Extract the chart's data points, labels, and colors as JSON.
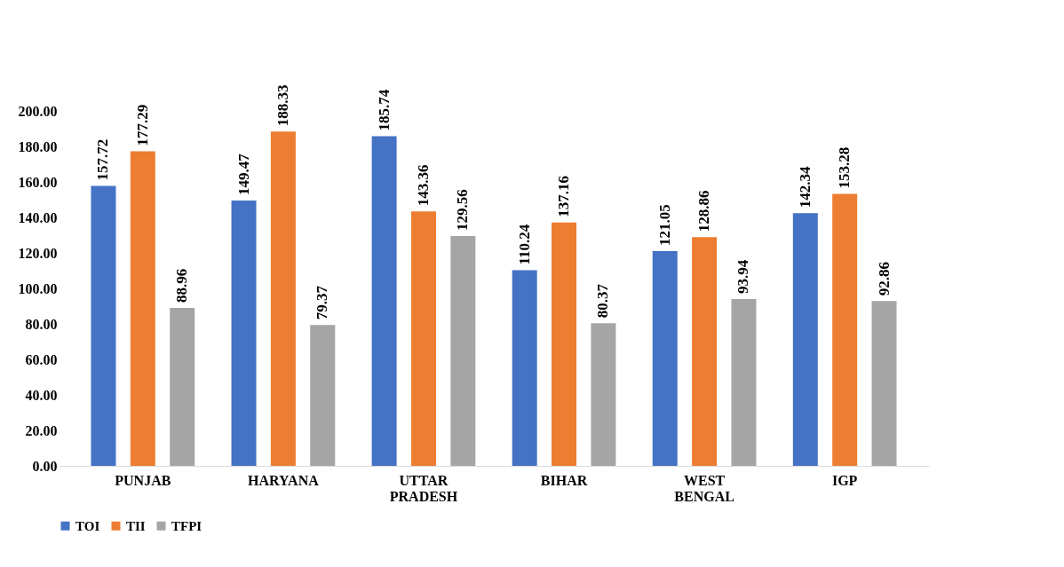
{
  "chart_data": {
    "type": "bar",
    "categories": [
      "PUNJAB",
      "HARYANA",
      "UTTAR PRADESH",
      "BIHAR",
      "WEST BENGAL",
      "IGP"
    ],
    "series": [
      {
        "name": "TOI",
        "color": "#4472c4",
        "values": [
          157.72,
          149.47,
          185.74,
          110.24,
          121.05,
          142.34
        ]
      },
      {
        "name": "TII",
        "color": "#ed7d31",
        "values": [
          177.29,
          188.33,
          143.36,
          137.16,
          128.86,
          153.28
        ]
      },
      {
        "name": "TFPI",
        "color": "#a5a5a5",
        "values": [
          88.96,
          79.37,
          129.56,
          80.37,
          93.94,
          92.86
        ]
      }
    ],
    "ylim": [
      0,
      200
    ],
    "yticks": [
      {
        "value": 0,
        "label": "0.00"
      },
      {
        "value": 20,
        "label": "20.00"
      },
      {
        "value": 40,
        "label": "40.00"
      },
      {
        "value": 60,
        "label": "60.00"
      },
      {
        "value": 80,
        "label": "80.00"
      },
      {
        "value": 100,
        "label": "100.00"
      },
      {
        "value": 120,
        "label": "120.00"
      },
      {
        "value": 140,
        "label": "140.00"
      },
      {
        "value": 160,
        "label": "160.00"
      },
      {
        "value": 180,
        "label": "180.00"
      },
      {
        "value": 200,
        "label": "200.00"
      }
    ],
    "data_labels": true,
    "legend": "bottom",
    "grid": false
  }
}
